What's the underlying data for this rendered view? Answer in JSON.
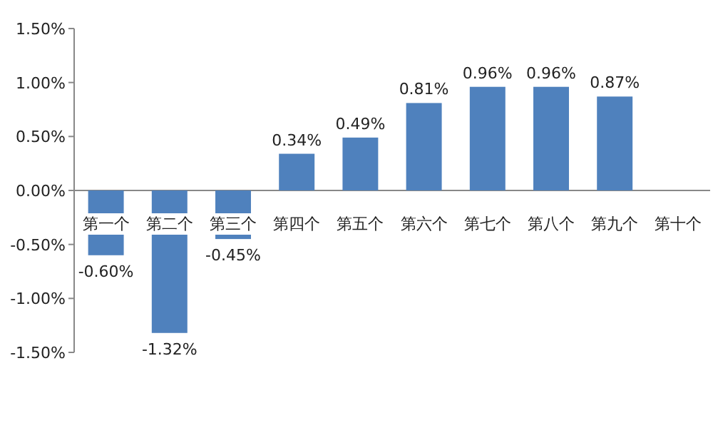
{
  "chart_data": {
    "type": "bar",
    "categories": [
      "第一个",
      "第二个",
      "第三个",
      "第四个",
      "第五个",
      "第六个",
      "第七个",
      "第八个",
      "第九个",
      "第十个"
    ],
    "values": [
      -0.6,
      -1.32,
      -0.45,
      0.34,
      0.49,
      0.81,
      0.96,
      0.96,
      0.87,
      null
    ],
    "value_labels": [
      "-0.60%",
      "-1.32%",
      "-0.45%",
      "0.34%",
      "0.49%",
      "0.81%",
      "0.96%",
      "0.96%",
      "0.87%",
      null
    ],
    "color": "#4f81bd",
    "ylim": [
      -1.5,
      1.5
    ],
    "yticks": [
      {
        "value": -1.5,
        "label": "-1.50%"
      },
      {
        "value": -1.0,
        "label": "-1.00%"
      },
      {
        "value": -0.5,
        "label": "-0.50%"
      },
      {
        "value": 0,
        "label": "0.00%"
      },
      {
        "value": 0.5,
        "label": "0.50%"
      },
      {
        "value": 1.0,
        "label": "1.00%"
      },
      {
        "value": 1.5,
        "label": "1.50%"
      }
    ],
    "grid": false
  }
}
